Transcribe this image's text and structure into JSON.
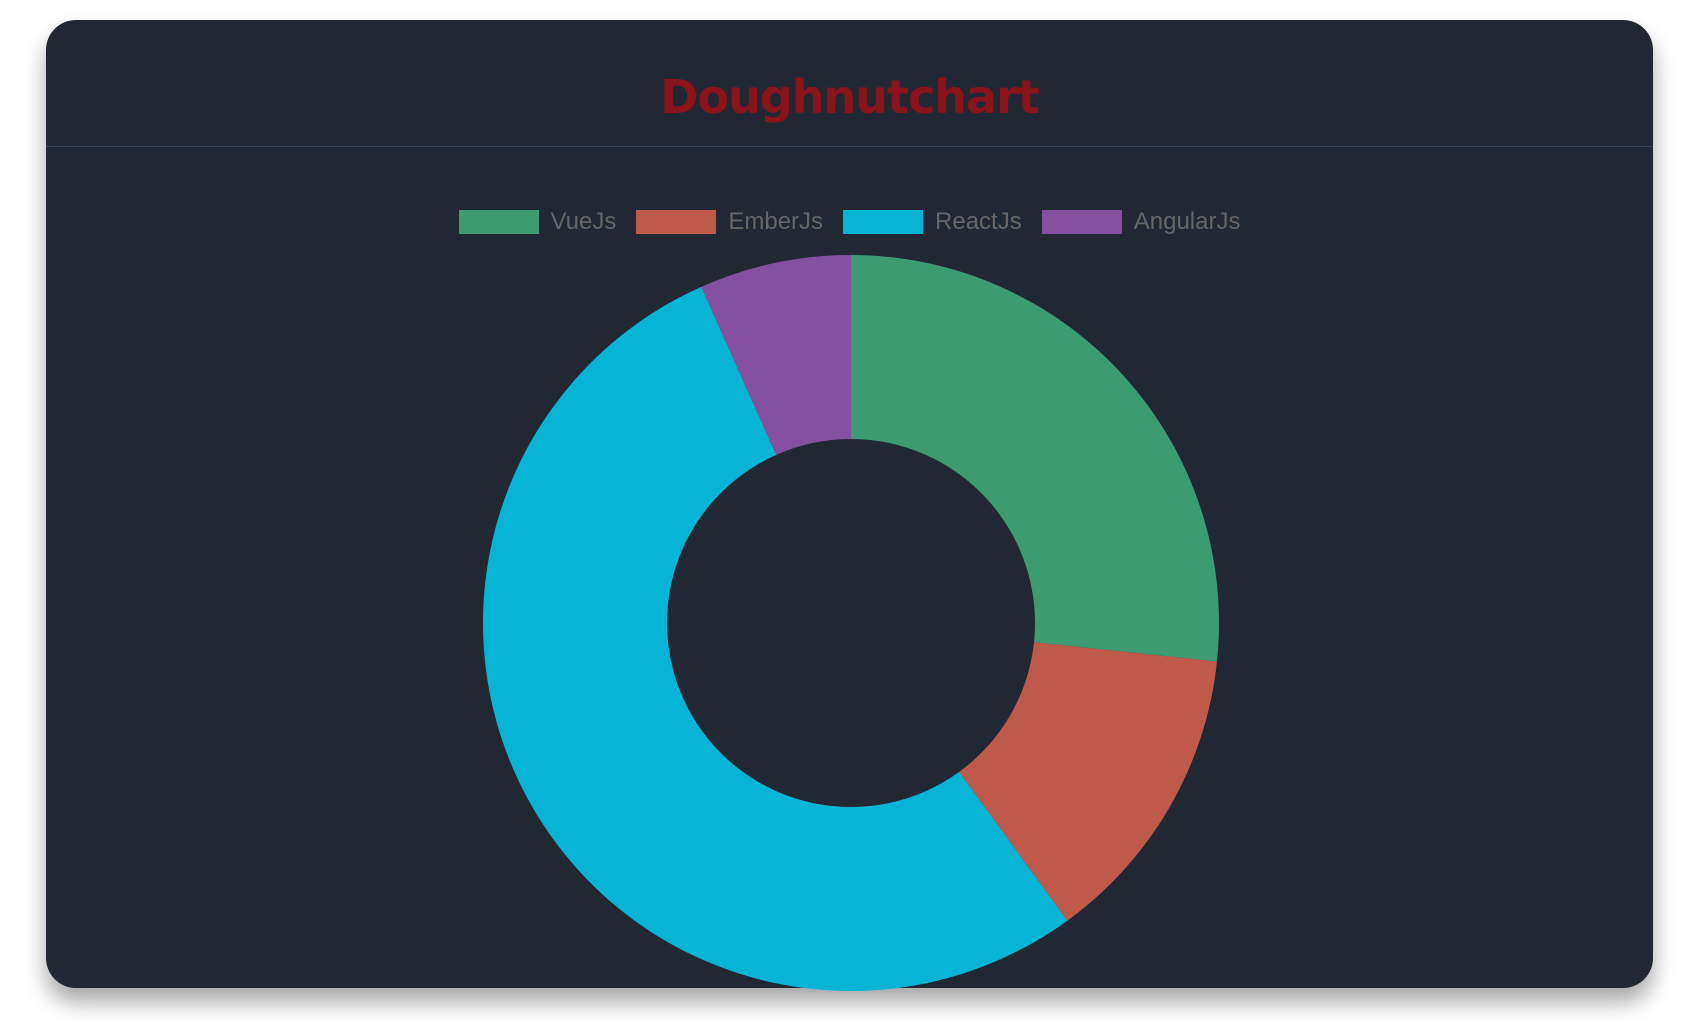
{
  "chart_data": {
    "type": "doughnut",
    "title": "Doughnutchart",
    "categories": [
      "VueJs",
      "EmberJs",
      "ReactJs",
      "AngularJs"
    ],
    "values": [
      4,
      2,
      8,
      1
    ],
    "colors": [
      "#3d9b72",
      "#bf5a4b",
      "#06b4d6",
      "#85509f"
    ],
    "legend_position": "top"
  },
  "colors": {
    "background": "#212733",
    "title": "#8b141a",
    "legend_text": "#666666"
  }
}
